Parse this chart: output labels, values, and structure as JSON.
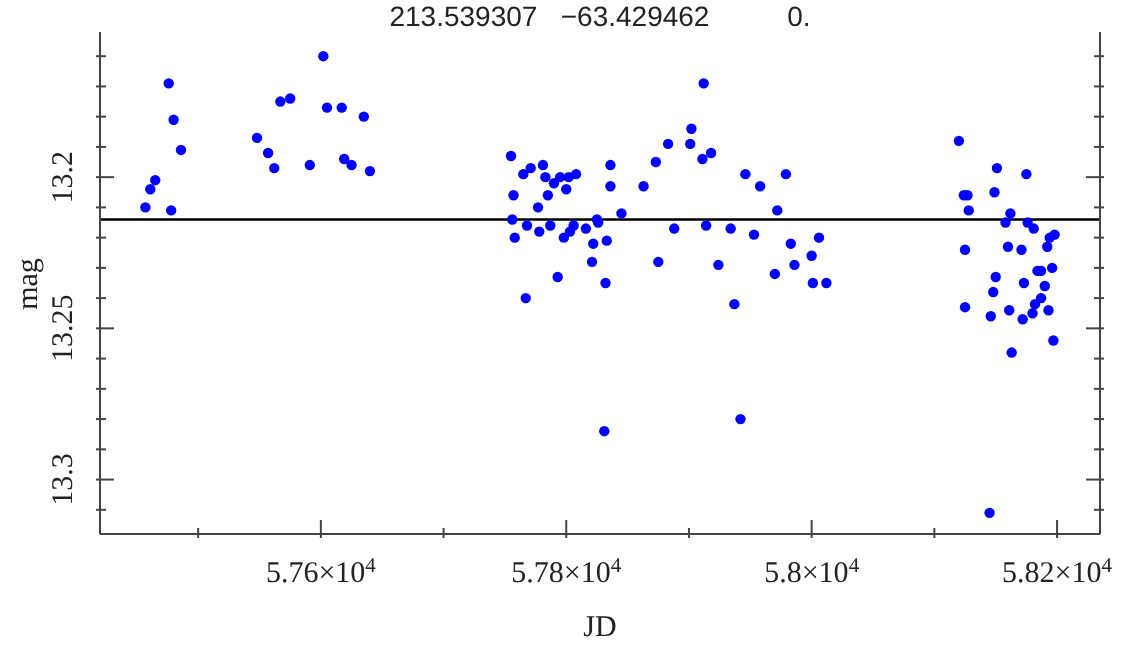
{
  "chart_data": {
    "type": "scatter",
    "title": "213.539307   −63.429462          0.",
    "xlabel": "JD",
    "ylabel": "mag",
    "color": "#0000ff",
    "marker": "circle",
    "xlim": [
      57420,
      58235
    ],
    "xticks": [
      {
        "value": 57500,
        "label": null
      },
      {
        "value": 57600,
        "label": "5.76×10$^{4}$"
      },
      {
        "value": 57700,
        "label": null
      },
      {
        "value": 57800,
        "label": "5.78×10$^{4}$"
      },
      {
        "value": 57900,
        "label": null
      },
      {
        "value": 58000,
        "label": "5.8×10$^{4}$"
      },
      {
        "value": 58100,
        "label": null
      },
      {
        "value": 58200,
        "label": "5.82×10$^{4}$"
      }
    ],
    "ylim": [
      13.318,
      13.152
    ],
    "yticks": [
      {
        "value": 13.16,
        "label": null
      },
      {
        "value": 13.17,
        "label": null
      },
      {
        "value": 13.18,
        "label": null
      },
      {
        "value": 13.19,
        "label": null
      },
      13.2,
      {
        "value": 13.21,
        "label": null
      },
      {
        "value": 13.22,
        "label": null
      },
      {
        "value": 13.23,
        "label": null
      },
      {
        "value": 13.24,
        "label": null
      },
      13.25,
      {
        "value": 13.26,
        "label": null
      },
      {
        "value": 13.27,
        "label": null
      },
      {
        "value": 13.28,
        "label": null
      },
      {
        "value": 13.29,
        "label": null
      },
      13.3,
      {
        "value": 13.31,
        "label": null
      }
    ],
    "ref_lines": [
      {
        "axis": "y",
        "value": 13.214,
        "color": "#000000"
      }
    ],
    "x": [
      57457,
      57461,
      57465,
      57476,
      57478,
      57480,
      57486,
      57548,
      57557,
      57562,
      57567,
      57575,
      57591,
      57602,
      57605,
      57617,
      57619,
      57625,
      57635,
      57640,
      57755,
      57757,
      57756,
      57758,
      57765,
      57771,
      57768,
      57767,
      57777,
      57778,
      57781,
      57783,
      57785,
      57787,
      57790,
      57793,
      57795,
      57798,
      57800,
      57802,
      57803,
      57806,
      57808,
      57816,
      57822,
      57821,
      57825,
      57826,
      57832,
      57833,
      57836,
      57836,
      57845,
      57863,
      57873,
      57875,
      57883,
      57888,
      57901,
      57902,
      57911,
      57912,
      57914,
      57918,
      57924,
      57934,
      57937,
      57946,
      57953,
      57958,
      57970,
      57972,
      57979,
      57983,
      57986,
      58000,
      58006,
      58001,
      58012,
      58120,
      58124,
      58127,
      58128,
      58125,
      58125,
      58146,
      58148,
      58149,
      58150,
      58151,
      58158,
      58160,
      58162,
      58161,
      58171,
      58172,
      58173,
      58175,
      58176,
      58181,
      58180,
      58182,
      58184,
      58187,
      58187,
      58190,
      58193,
      58192,
      58194,
      58198,
      58196,
      58197,
      57831,
      57942,
      58163,
      58145
    ],
    "values": [
      13.21,
      13.204,
      13.201,
      13.169,
      13.211,
      13.181,
      13.191,
      13.187,
      13.192,
      13.197,
      13.175,
      13.174,
      13.196,
      13.16,
      13.177,
      13.177,
      13.194,
      13.196,
      13.18,
      13.198,
      13.193,
      13.206,
      13.214,
      13.22,
      13.199,
      13.197,
      13.216,
      13.24,
      13.21,
      13.218,
      13.196,
      13.2,
      13.206,
      13.216,
      13.202,
      13.233,
      13.2,
      13.22,
      13.204,
      13.2,
      13.218,
      13.216,
      13.199,
      13.217,
      13.222,
      13.228,
      13.214,
      13.215,
      13.235,
      13.221,
      13.203,
      13.196,
      13.212,
      13.203,
      13.195,
      13.228,
      13.189,
      13.217,
      13.189,
      13.184,
      13.194,
      13.169,
      13.216,
      13.192,
      13.229,
      13.217,
      13.242,
      13.199,
      13.219,
      13.203,
      13.232,
      13.211,
      13.199,
      13.222,
      13.229,
      13.226,
      13.22,
      13.235,
      13.235,
      13.188,
      13.206,
      13.206,
      13.211,
      13.224,
      13.243,
      13.246,
      13.238,
      13.205,
      13.233,
      13.197,
      13.215,
      13.223,
      13.212,
      13.244,
      13.224,
      13.247,
      13.235,
      13.199,
      13.215,
      13.217,
      13.245,
      13.242,
      13.231,
      13.231,
      13.24,
      13.236,
      13.244,
      13.223,
      13.22,
      13.219,
      13.23,
      13.254,
      13.284,
      13.28,
      13.258,
      13.311
    ]
  }
}
